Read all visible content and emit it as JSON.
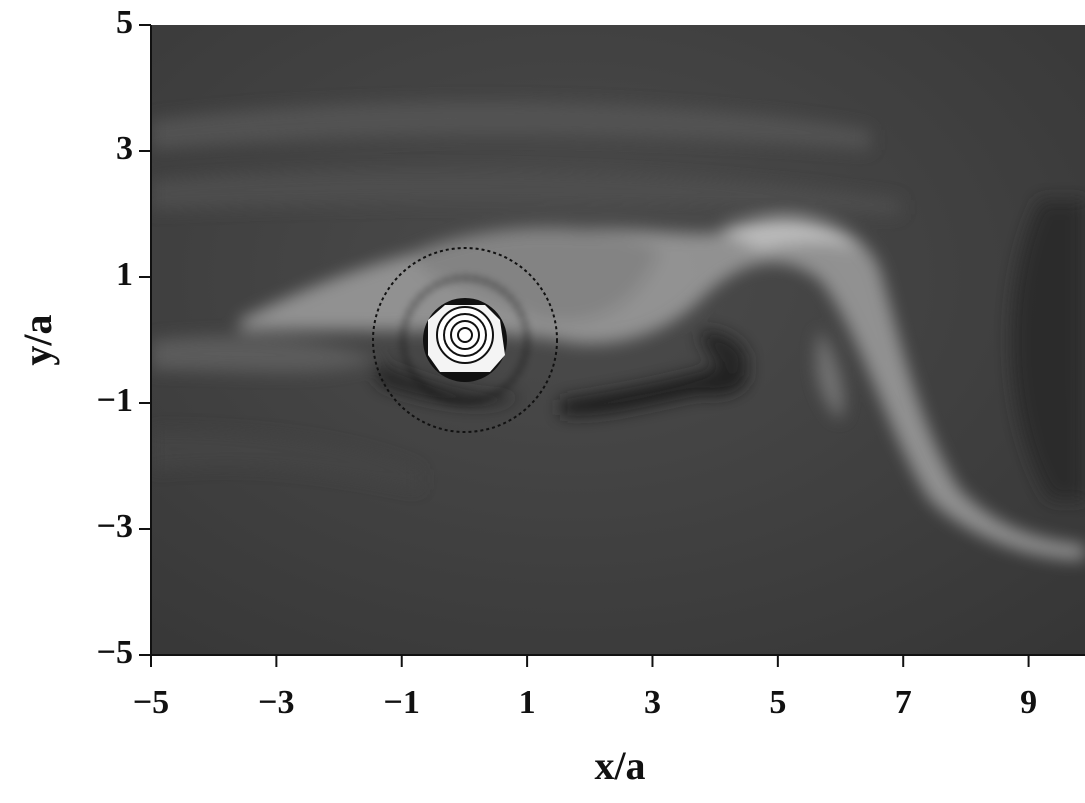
{
  "chart_data": {
    "type": "field",
    "x_label": "x/a",
    "y_label": "y/a",
    "xlim": [
      -5,
      9.9
    ],
    "ylim": [
      -5,
      5
    ],
    "xticks": [
      {
        "value": -5,
        "label": "−5"
      },
      {
        "value": -3,
        "label": "−3"
      },
      {
        "value": -1,
        "label": "−1"
      },
      1,
      3,
      5,
      7,
      9
    ],
    "yticks": [
      {
        "value": -5,
        "label": "−5"
      },
      {
        "value": -3,
        "label": "−3"
      },
      {
        "value": -1,
        "label": "−1"
      },
      1,
      3,
      5
    ]
  }
}
